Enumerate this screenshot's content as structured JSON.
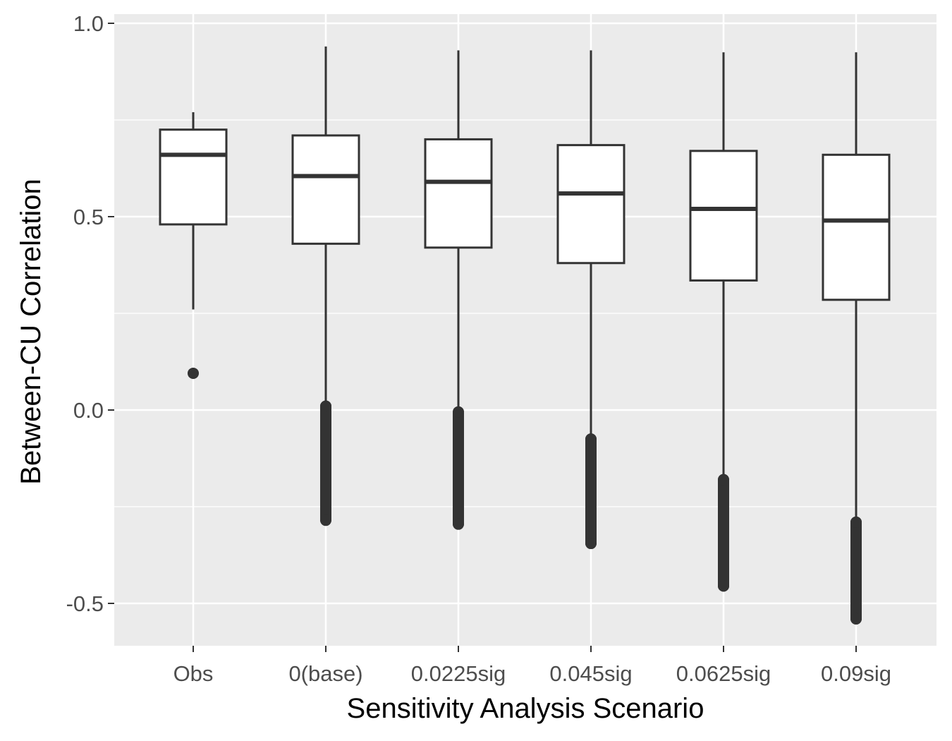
{
  "chart_data": {
    "type": "boxplot",
    "title": "",
    "xlabel": "Sensitivity Analysis Scenario",
    "ylabel": "Between-CU Correlation",
    "ylim": [
      -0.61,
      1.02
    ],
    "yticks": [
      -0.5,
      0.0,
      0.5,
      1.0
    ],
    "ytick_labels": [
      "-0.5",
      "0.0",
      "0.5",
      "1.0"
    ],
    "grid": true,
    "background": "#ebebeb",
    "categories": [
      "Obs",
      "0(base)",
      "0.0225sig",
      "0.045sig",
      "0.0625sig",
      "0.09sig"
    ],
    "boxes": [
      {
        "category": "Obs",
        "whisker_low": 0.26,
        "q1": 0.48,
        "median": 0.66,
        "q3": 0.725,
        "whisker_high": 0.77,
        "outliers": [
          0.095
        ]
      },
      {
        "category": "0(base)",
        "whisker_low": 0.01,
        "q1": 0.43,
        "median": 0.605,
        "q3": 0.71,
        "whisker_high": 0.94,
        "outliers_range": [
          -0.285,
          0.01
        ]
      },
      {
        "category": "0.0225sig",
        "whisker_low": -0.005,
        "q1": 0.42,
        "median": 0.59,
        "q3": 0.7,
        "whisker_high": 0.93,
        "outliers_range": [
          -0.295,
          -0.005
        ]
      },
      {
        "category": "0.045sig",
        "whisker_low": -0.075,
        "q1": 0.38,
        "median": 0.56,
        "q3": 0.685,
        "whisker_high": 0.93,
        "outliers_range": [
          -0.345,
          -0.075
        ]
      },
      {
        "category": "0.0625sig",
        "whisker_low": -0.18,
        "q1": 0.335,
        "median": 0.52,
        "q3": 0.67,
        "whisker_high": 0.925,
        "outliers_range": [
          -0.455,
          -0.18
        ]
      },
      {
        "category": "0.09sig",
        "whisker_low": -0.29,
        "q1": 0.285,
        "median": 0.49,
        "q3": 0.66,
        "whisker_high": 0.925,
        "outliers_range": [
          -0.54,
          -0.29
        ]
      }
    ]
  }
}
